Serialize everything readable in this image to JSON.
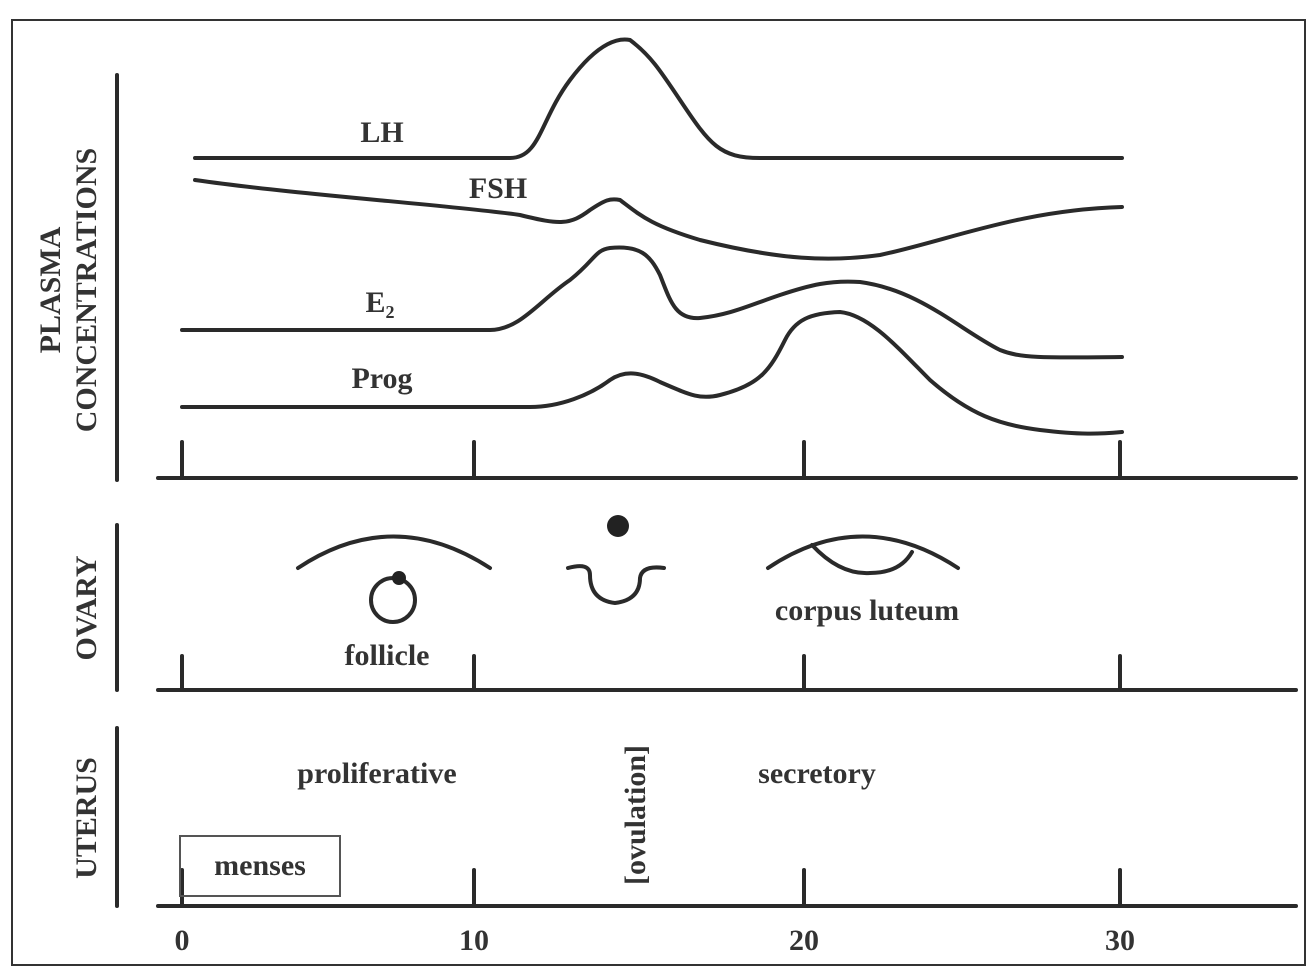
{
  "plasma": {
    "label_lines": [
      "PLASMA",
      "CONCENTRATIONS"
    ],
    "curves": [
      "LH",
      "FSH",
      "E₂",
      "Prog"
    ]
  },
  "ovary": {
    "label": "OVARY",
    "stages": [
      "follicle",
      "corpus luteum"
    ]
  },
  "uterus": {
    "label": "UTERUS",
    "phases": [
      "proliferative",
      "secretory",
      "menses"
    ],
    "event": "[ovulation]"
  },
  "x_axis": {
    "ticks": [
      "0",
      "10",
      "20",
      "30"
    ]
  }
}
